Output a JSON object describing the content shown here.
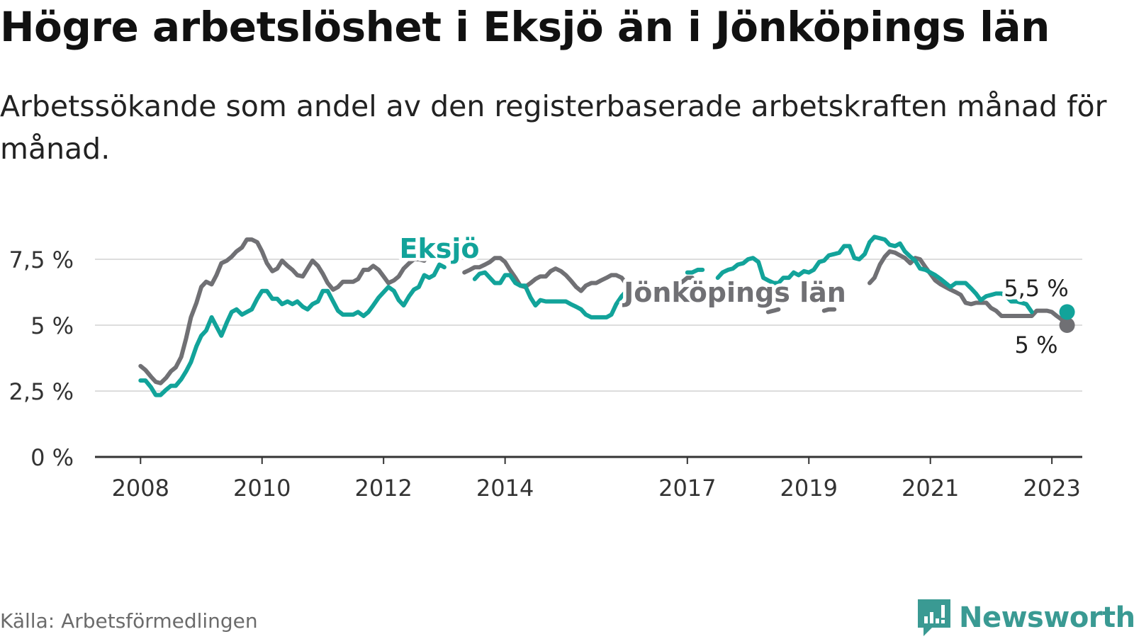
{
  "title": "Högre arbetslöshet i Eksjö än i Jönköpings län",
  "subtitle": "Arbetssökande som andel av den registerbaserade arbetskraften månad för månad.",
  "source": "Källa: Arbetsförmedlingen",
  "brand": {
    "name": "Newsworthy",
    "icon": "newsworthy-logo-icon"
  },
  "colors": {
    "eksjo": "#12a39a",
    "lan": "#707074",
    "grid": "#dddddd",
    "axis": "#333333",
    "text": "#333333"
  },
  "chart_data": {
    "type": "line",
    "title": "Högre arbetslöshet i Eksjö än i Jönköpings län",
    "xlabel": "",
    "ylabel": "",
    "xlim": [
      2007.25,
      2023.5
    ],
    "ylim": [
      0,
      8.2
    ],
    "y_ticks": [
      0,
      2.5,
      5,
      7.5
    ],
    "y_tick_labels": [
      "0 %",
      "2,5 %",
      "5 %",
      "7,5 %"
    ],
    "x_ticks": [
      2008,
      2010,
      2012,
      2014,
      2017,
      2019,
      2021,
      2023
    ],
    "x_tick_labels": [
      "2008",
      "2010",
      "2012",
      "2014",
      "2017",
      "2019",
      "2021",
      "2023"
    ],
    "grid": true,
    "series": [
      {
        "name": "Eksjö",
        "label": "Eksjö",
        "color": "#12a39a",
        "end_label": "5,5 %",
        "end_value": 5.5,
        "segments": [
          {
            "x": [
              2008.0,
              2008.08,
              2008.17,
              2008.25,
              2008.33,
              2008.42,
              2008.5,
              2008.58,
              2008.67,
              2008.75,
              2008.83,
              2008.92,
              2009.0,
              2009.08,
              2009.17,
              2009.25,
              2009.33,
              2009.42,
              2009.5,
              2009.58,
              2009.67,
              2009.75,
              2009.83,
              2009.92,
              2010.0,
              2010.08,
              2010.17,
              2010.25,
              2010.33,
              2010.42,
              2010.5,
              2010.58,
              2010.67,
              2010.75,
              2010.83,
              2010.92,
              2011.0,
              2011.08,
              2011.17,
              2011.25,
              2011.33,
              2011.42,
              2011.5,
              2011.58,
              2011.67,
              2011.75,
              2011.83,
              2011.92,
              2012.0,
              2012.08,
              2012.17,
              2012.25,
              2012.33,
              2012.42,
              2012.5,
              2012.58,
              2012.67,
              2012.75,
              2012.83,
              2012.92,
              2013.0
            ],
            "y": [
              2.9,
              2.9,
              2.65,
              2.35,
              2.35,
              2.55,
              2.7,
              2.7,
              2.95,
              3.25,
              3.6,
              4.2,
              4.6,
              4.8,
              5.3,
              4.95,
              4.6,
              5.1,
              5.5,
              5.6,
              5.4,
              5.5,
              5.6,
              6.0,
              6.3,
              6.3,
              6.0,
              6.0,
              5.8,
              5.9,
              5.8,
              5.9,
              5.7,
              5.6,
              5.8,
              5.9,
              6.3,
              6.3,
              5.9,
              5.55,
              5.4,
              5.4,
              5.4,
              5.5,
              5.35,
              5.5,
              5.75,
              6.05,
              6.25,
              6.45,
              6.3,
              5.95,
              5.75,
              6.1,
              6.35,
              6.45,
              6.9,
              6.8,
              6.9,
              7.3,
              7.2
            ]
          },
          {
            "x": [
              2013.5,
              2013.58,
              2013.67,
              2013.75,
              2013.83,
              2013.92,
              2014.0,
              2014.08,
              2014.17,
              2014.25,
              2014.33,
              2014.42,
              2014.5,
              2014.58,
              2014.67,
              2014.75,
              2014.83,
              2014.92,
              2015.0,
              2015.08,
              2015.17,
              2015.25,
              2015.33,
              2015.42,
              2015.5,
              2015.58,
              2015.67,
              2015.75,
              2015.83,
              2015.92,
              2016.0,
              2016.08,
              2016.17
            ],
            "y": [
              6.75,
              6.95,
              7.0,
              6.8,
              6.6,
              6.6,
              6.9,
              6.9,
              6.6,
              6.5,
              6.5,
              6.05,
              5.75,
              5.95,
              5.9,
              5.9,
              5.9,
              5.9,
              5.9,
              5.8,
              5.7,
              5.6,
              5.4,
              5.3,
              5.3,
              5.3,
              5.3,
              5.4,
              5.8,
              6.1,
              6.3,
              6.45,
              6.2
            ]
          },
          {
            "x": [
              2017.0,
              2017.08,
              2017.17,
              2017.25
            ],
            "y": [
              7.0,
              7.0,
              7.1,
              7.1
            ]
          },
          {
            "x": [
              2017.5,
              2017.58,
              2017.67,
              2017.75,
              2017.83,
              2017.92,
              2018.0,
              2018.08,
              2018.17,
              2018.25,
              2018.33,
              2018.42,
              2018.5,
              2018.58,
              2018.67,
              2018.75,
              2018.83,
              2018.92,
              2019.0,
              2019.08,
              2019.17,
              2019.25,
              2019.33,
              2019.42,
              2019.5,
              2019.58,
              2019.67,
              2019.75,
              2019.83,
              2019.92,
              2020.0,
              2020.08,
              2020.17,
              2020.25,
              2020.33,
              2020.42,
              2020.5,
              2020.58,
              2020.67,
              2020.75,
              2020.83,
              2020.92,
              2021.0,
              2021.08,
              2021.17,
              2021.25,
              2021.33,
              2021.42,
              2021.5,
              2021.58,
              2021.67,
              2021.75,
              2021.83,
              2021.92,
              2022.0,
              2022.08,
              2022.17,
              2022.25,
              2022.33,
              2022.42,
              2022.5,
              2022.58,
              2022.67
            ],
            "y": [
              6.8,
              7.0,
              7.1,
              7.15,
              7.3,
              7.35,
              7.5,
              7.55,
              7.4,
              6.8,
              6.7,
              6.6,
              6.6,
              6.8,
              6.8,
              7.0,
              6.9,
              7.05,
              7.0,
              7.1,
              7.4,
              7.45,
              7.65,
              7.7,
              7.75,
              8.0,
              8.0,
              7.55,
              7.5,
              7.7,
              8.15,
              8.35,
              8.3,
              8.25,
              8.05,
              8.0,
              8.1,
              7.8,
              7.6,
              7.45,
              7.15,
              7.1,
              7.0,
              6.9,
              6.75,
              6.6,
              6.45,
              6.6,
              6.6,
              6.6,
              6.4,
              6.2,
              5.95,
              6.1,
              6.15,
              6.2,
              6.2,
              6.1,
              5.9,
              5.9,
              5.85,
              5.8,
              5.5
            ]
          }
        ]
      },
      {
        "name": "Jönköpings län",
        "label": "Jönköpings län",
        "color": "#707074",
        "end_label": "5 %",
        "end_value": 5.0,
        "segments": [
          {
            "x": [
              2008.0,
              2008.08,
              2008.17,
              2008.25,
              2008.33,
              2008.42,
              2008.5,
              2008.58,
              2008.67,
              2008.75,
              2008.83,
              2008.92,
              2009.0,
              2009.08,
              2009.17,
              2009.25,
              2009.33,
              2009.42,
              2009.5,
              2009.58,
              2009.67,
              2009.75,
              2009.83,
              2009.92,
              2010.0,
              2010.08,
              2010.17,
              2010.25,
              2010.33,
              2010.42,
              2010.5,
              2010.58,
              2010.67,
              2010.75,
              2010.83,
              2010.92,
              2011.0,
              2011.08,
              2011.17,
              2011.25,
              2011.33,
              2011.42,
              2011.5,
              2011.58,
              2011.67,
              2011.75,
              2011.83,
              2011.92,
              2012.0,
              2012.08,
              2012.17,
              2012.25,
              2012.33,
              2012.42,
              2012.5,
              2012.58,
              2012.67
            ],
            "y": [
              3.45,
              3.3,
              3.05,
              2.85,
              2.8,
              3.0,
              3.25,
              3.4,
              3.8,
              4.5,
              5.3,
              5.85,
              6.45,
              6.65,
              6.55,
              6.9,
              7.35,
              7.45,
              7.6,
              7.8,
              7.95,
              8.25,
              8.25,
              8.15,
              7.8,
              7.35,
              7.05,
              7.15,
              7.45,
              7.25,
              7.1,
              6.9,
              6.85,
              7.15,
              7.45,
              7.25,
              6.95,
              6.6,
              6.35,
              6.45,
              6.65,
              6.65,
              6.65,
              6.75,
              7.1,
              7.1,
              7.25,
              7.1,
              6.85,
              6.6,
              6.7,
              6.85,
              7.15,
              7.35,
              7.5,
              7.5,
              7.45
            ]
          },
          {
            "x": [
              2013.33,
              2013.42,
              2013.5,
              2013.58,
              2013.67,
              2013.75,
              2013.83,
              2013.92,
              2014.0,
              2014.08,
              2014.17,
              2014.25,
              2014.33,
              2014.42,
              2014.5,
              2014.58,
              2014.67,
              2014.75,
              2014.83,
              2014.92,
              2015.0,
              2015.08,
              2015.17,
              2015.25,
              2015.33,
              2015.42,
              2015.5,
              2015.58,
              2015.67,
              2015.75,
              2015.83,
              2015.92,
              2016.0,
              2016.08,
              2016.17,
              2016.25
            ],
            "y": [
              7.0,
              7.1,
              7.2,
              7.2,
              7.3,
              7.4,
              7.55,
              7.55,
              7.4,
              7.1,
              6.8,
              6.5,
              6.45,
              6.6,
              6.75,
              6.85,
              6.85,
              7.05,
              7.15,
              7.05,
              6.9,
              6.7,
              6.45,
              6.3,
              6.5,
              6.6,
              6.6,
              6.7,
              6.8,
              6.9,
              6.9,
              6.8,
              6.55,
              6.25,
              6.0,
              6.0
            ]
          },
          {
            "x": [
              2016.75,
              2016.83,
              2016.92,
              2017.0,
              2017.08
            ],
            "y": [
              6.3,
              6.5,
              6.65,
              6.8,
              6.8
            ]
          },
          {
            "x": [
              2018.33,
              2018.42,
              2018.5
            ],
            "y": [
              5.5,
              5.55,
              5.6
            ]
          },
          {
            "x": [
              2019.25,
              2019.33,
              2019.42
            ],
            "y": [
              5.55,
              5.6,
              5.6
            ]
          },
          {
            "x": [
              2020.0,
              2020.08,
              2020.17,
              2020.25,
              2020.33,
              2020.42,
              2020.5,
              2020.58,
              2020.67,
              2020.75,
              2020.83,
              2020.92,
              2021.0,
              2021.08,
              2021.17,
              2021.25,
              2021.33,
              2021.42,
              2021.5,
              2021.58,
              2021.67,
              2021.75,
              2021.83,
              2021.92,
              2022.0,
              2022.08,
              2022.17,
              2022.25,
              2022.33,
              2022.42,
              2022.5,
              2022.58,
              2022.67,
              2022.75,
              2022.83,
              2022.92,
              2023.0,
              2023.08,
              2023.17,
              2023.25
            ],
            "y": [
              6.6,
              6.8,
              7.3,
              7.6,
              7.8,
              7.75,
              7.65,
              7.55,
              7.35,
              7.55,
              7.5,
              7.2,
              6.95,
              6.7,
              6.55,
              6.45,
              6.35,
              6.25,
              6.15,
              5.85,
              5.8,
              5.85,
              5.85,
              5.85,
              5.65,
              5.55,
              5.35,
              5.35,
              5.35,
              5.35,
              5.35,
              5.35,
              5.35,
              5.55,
              5.55,
              5.55,
              5.5,
              5.35,
              5.2,
              5.0
            ]
          }
        ]
      }
    ],
    "annotations": [
      {
        "text": "Eksjö",
        "series": "Eksjö"
      },
      {
        "text": "Jönköpings län",
        "series": "Jönköpings län"
      },
      {
        "text": "5,5 %",
        "series": "Eksjö",
        "x": 2023.25,
        "y": 5.5
      },
      {
        "text": "5 %",
        "series": "Jönköpings län",
        "x": 2023.25,
        "y": 5.0
      }
    ]
  }
}
